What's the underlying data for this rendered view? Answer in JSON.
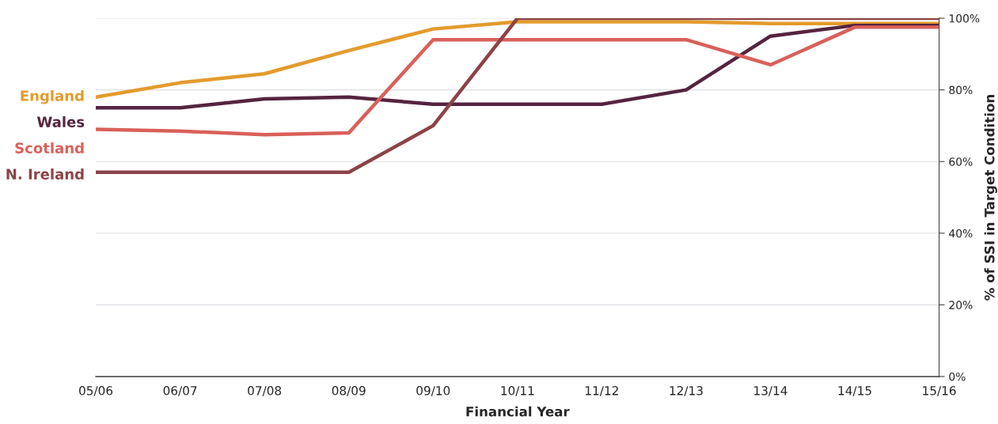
{
  "chart_data": {
    "type": "line",
    "xlabel": "Financial Year",
    "y2label": "% of SSI in Target Condition",
    "categories": [
      "05/06",
      "06/07",
      "07/08",
      "08/09",
      "09/10",
      "10/11",
      "11/12",
      "12/13",
      "13/14",
      "14/15",
      "15/16"
    ],
    "series": [
      {
        "name": "England",
        "color": "#e39b2d",
        "axis": "y2",
        "values": [
          78,
          82,
          84.5,
          91,
          97,
          99,
          99,
          99,
          98.5,
          98.5,
          98.5
        ]
      },
      {
        "name": "Wales",
        "color": "#55243f",
        "axis": "y2",
        "values": [
          75,
          75,
          77.5,
          78,
          76,
          76,
          76,
          80,
          95,
          98,
          98
        ]
      },
      {
        "name": "Scotland",
        "color": "#d9605a",
        "axis": "y2",
        "values": [
          69,
          68.5,
          67.5,
          68,
          94,
          94,
          94,
          94,
          87,
          97.5,
          97.5
        ]
      },
      {
        "name": "N. Ireland",
        "color": "#8b4346",
        "axis": "y2",
        "values": [
          57,
          57,
          57,
          57,
          70,
          100,
          100,
          100,
          100,
          100,
          100
        ]
      }
    ],
    "y2lim": [
      0,
      100
    ],
    "y2ticks": [
      {
        "value": 0,
        "label": "0%"
      },
      {
        "value": 20,
        "label": "20%"
      },
      {
        "value": 40,
        "label": "40%"
      },
      {
        "value": 60,
        "label": "60%"
      },
      {
        "value": 80,
        "label": "80%"
      },
      {
        "value": 100,
        "label": "100%"
      }
    ],
    "grid": "y",
    "legend": false,
    "marker": "none",
    "line_style": "solid"
  }
}
